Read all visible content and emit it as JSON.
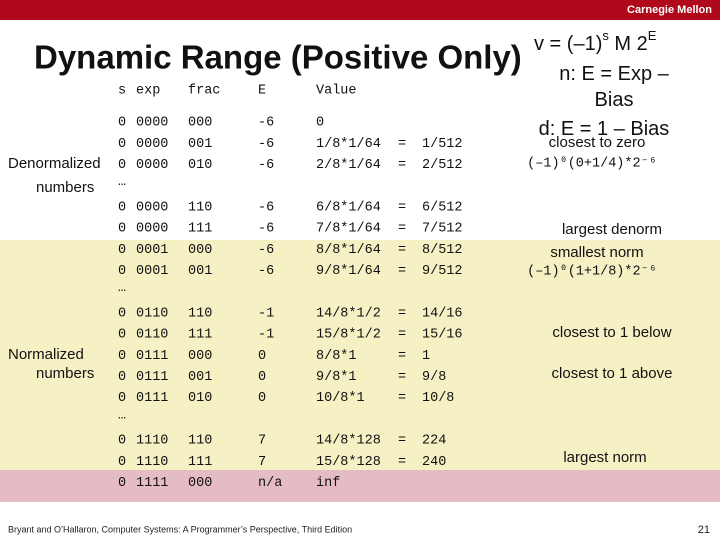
{
  "header": {
    "brand": "Carnegie Mellon"
  },
  "title": "Dynamic Range (Positive Only)",
  "formula_box": {
    "lines": [
      [
        "v = (–1)",
        "s",
        " M 2",
        "E"
      ],
      [
        "n: E = Exp –"
      ],
      [
        "Bias"
      ],
      [
        "d: E = 1 – Bias"
      ]
    ]
  },
  "table": {
    "columns": [
      "s",
      "exp",
      "frac",
      "E",
      "Value"
    ],
    "rows": [
      [
        "0",
        "0000",
        "000",
        "-6",
        "0",
        "",
        ""
      ],
      [
        "0",
        "0000",
        "001",
        "-6",
        "1/8*1/64",
        "=",
        "1/512"
      ],
      [
        "0",
        "0000",
        "010",
        "-6",
        "2/8*1/64",
        "=",
        "2/512"
      ],
      [
        "…"
      ],
      [
        "0",
        "0000",
        "110",
        "-6",
        "6/8*1/64",
        "=",
        "6/512"
      ],
      [
        "0",
        "0000",
        "111",
        "-6",
        "7/8*1/64",
        "=",
        "7/512"
      ],
      [
        "0",
        "0001",
        "000",
        "-6",
        "8/8*1/64",
        "=",
        "8/512"
      ],
      [
        "0",
        "0001",
        "001",
        "-6",
        "9/8*1/64",
        "=",
        "9/512"
      ],
      [
        "…"
      ],
      [
        "0",
        "0110",
        "110",
        "-1",
        "14/8*1/2",
        "=",
        "14/16"
      ],
      [
        "0",
        "0110",
        "111",
        "-1",
        "15/8*1/2",
        "=",
        "15/16"
      ],
      [
        "0",
        "0111",
        "000",
        "0",
        "8/8*1",
        "=",
        "1"
      ],
      [
        "0",
        "0111",
        "001",
        "0",
        "9/8*1",
        "=",
        "9/8"
      ],
      [
        "0",
        "0111",
        "010",
        "0",
        "10/8*1",
        "=",
        "10/8"
      ],
      [
        "…"
      ],
      [
        "0",
        "1110",
        "110",
        "7",
        "14/8*128",
        "=",
        "224"
      ],
      [
        "0",
        "1110",
        "111",
        "7",
        "15/8*128",
        "=",
        "240"
      ],
      [
        "0",
        "1111",
        "000",
        "n/a",
        "inf",
        "",
        ""
      ]
    ]
  },
  "groups": [
    [
      "Denormalized",
      "numbers"
    ],
    [
      "Normalized",
      "numbers"
    ]
  ],
  "annotations": [
    "closest to zero",
    "(–1)⁰(0+1/4)*2⁻⁶",
    "largest denorm",
    "smallest norm",
    "(–1)⁰(1+1/8)*2⁻⁶",
    "closest to 1 below",
    "closest to 1 above",
    "largest norm"
  ],
  "footer": {
    "citation": "Bryant and O’Hallaron, Computer Systems: A Programmer’s Perspective, Third Edition",
    "page": "21"
  }
}
